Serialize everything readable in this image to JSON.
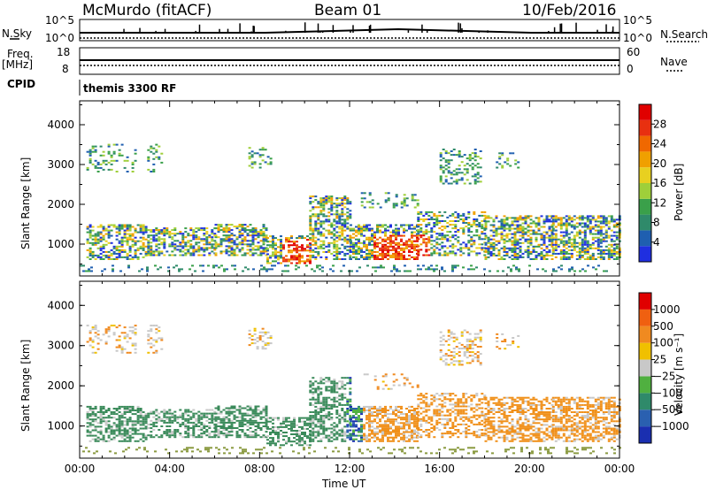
{
  "header": {
    "station": "McMurdo (fitACF)",
    "beam": "Beam 01",
    "date": "10/Feb/2016"
  },
  "left_labels": {
    "nsky": "N.Sky",
    "freq": "Freq.",
    "freq_unit": "[MHz]",
    "cpid": "CPID"
  },
  "right_labels": {
    "nsearch": "N.Search",
    "nave": "Nave"
  },
  "top_panel": {
    "left_ticks": [
      "10^5",
      "10^0"
    ],
    "right_ticks": [
      "10^5",
      "10^0"
    ]
  },
  "freq_panel": {
    "left_ticks": [
      "18",
      "8"
    ],
    "right_ticks": [
      "60",
      "0"
    ]
  },
  "cpid_text": "themis 3300 RF",
  "chart_data": [
    {
      "type": "heatmap",
      "name": "power",
      "ylabel": "Slant Range [km]",
      "xlabel": "Time UT",
      "y_ticks": [
        1000,
        2000,
        3000,
        4000
      ],
      "ylim": [
        200,
        4600
      ],
      "x_ticks": [
        "00:00",
        "04:00",
        "08:00",
        "12:00",
        "16:00",
        "20:00",
        "00:00"
      ],
      "xlim_hours": [
        0,
        24
      ],
      "colorbar": {
        "label": "Power [dB]",
        "ticks": [
          "4",
          "8",
          "12",
          "16",
          "20",
          "24",
          "28"
        ],
        "colors": [
          "#1f2fe0",
          "#1f5fb0",
          "#2f8a6a",
          "#3aa04a",
          "#9fcf3a",
          "#e8d020",
          "#f0a000",
          "#f06800",
          "#e83010",
          "#e00000"
        ]
      }
    },
    {
      "type": "heatmap",
      "name": "velocity",
      "ylabel": "Slant Range [km]",
      "xlabel": "Time UT",
      "y_ticks": [
        1000,
        2000,
        3000,
        4000
      ],
      "ylim": [
        200,
        4600
      ],
      "x_ticks": [
        "00:00",
        "04:00",
        "08:00",
        "12:00",
        "16:00",
        "20:00",
        "00:00"
      ],
      "xlim_hours": [
        0,
        24
      ],
      "colorbar": {
        "label": "Velocity [m s⁻¹]",
        "ticks": [
          "1000",
          "500",
          "100",
          "25",
          "−25",
          "−100",
          "−500",
          "−1000"
        ],
        "colors": [
          "#1a2fb0",
          "#2a60b0",
          "#2f8a6a",
          "#50b040",
          "#c8c8c8",
          "#f0c000",
          "#f08a20",
          "#f06010",
          "#e00000"
        ]
      }
    }
  ],
  "colors": {
    "ground": "#8a9a40",
    "dark_green": "#3a8a5a",
    "orange": "#f0901a"
  }
}
